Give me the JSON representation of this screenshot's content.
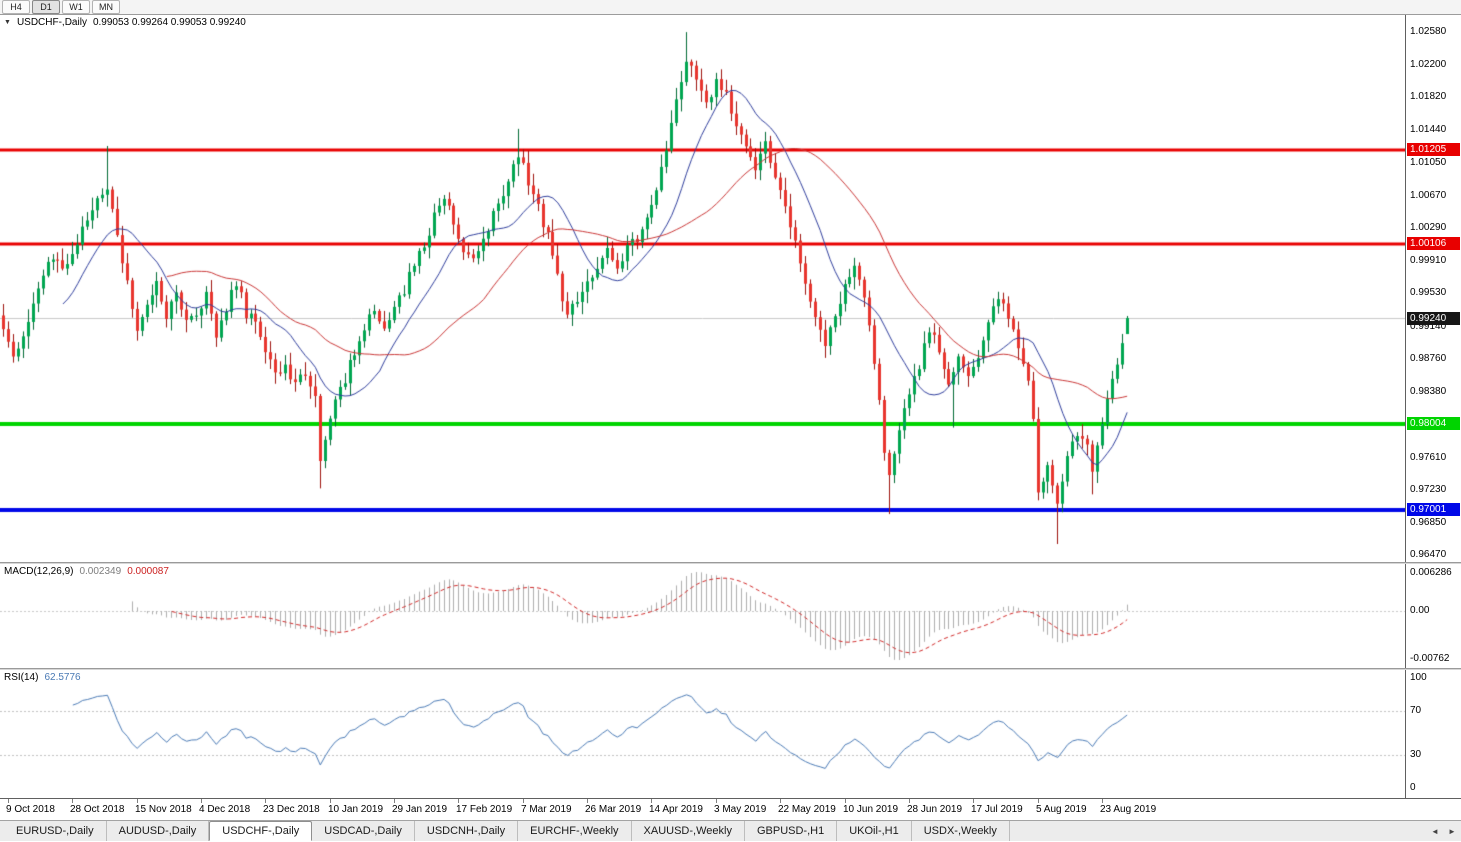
{
  "toolbar": {
    "timeframes": [
      "H4",
      "D1",
      "W1",
      "MN"
    ],
    "active_timeframe": "D1"
  },
  "chart": {
    "dropdown_icon": "▼",
    "symbol_period": "USDCHF-,Daily",
    "ohlc": "0.99053 0.99264 0.99053 0.99240",
    "price_axis_labels": [
      "1.02580",
      "1.02200",
      "1.01820",
      "1.01440",
      "1.01050",
      "1.00670",
      "1.00290",
      "0.99910",
      "0.99530",
      "0.99140",
      "0.98760",
      "0.98380",
      "0.97610",
      "0.97230",
      "0.96850",
      "0.96470"
    ],
    "hlines": [
      {
        "value": 1.01205,
        "label": "1.01205",
        "color": "#e80000",
        "thickness": 3
      },
      {
        "value": 1.00106,
        "label": "1.00106",
        "color": "#e80000",
        "thickness": 3
      },
      {
        "value": 0.98004,
        "label": "0.98004",
        "color": "#00d400",
        "thickness": 4
      },
      {
        "value": 0.97001,
        "label": "0.97001",
        "color": "#0008e8",
        "thickness": 4
      }
    ],
    "current_price": {
      "value": 0.9924,
      "label": "0.99240",
      "box_color": "#161616",
      "line_color": "#c9c9c9"
    },
    "colors": {
      "bull_fill": "#00a651",
      "bull_border": "#006b34",
      "bear_fill": "#e8352e",
      "bear_border": "#9e120c",
      "ma_fast": "#2e3d9c",
      "ma_slow": "#c93535"
    }
  },
  "macd_panel": {
    "name": "MACD(12,26,9)",
    "value_main": "0.002349",
    "value_signal": "0.000087",
    "axis_top": "0.006286",
    "axis_zero": "0.00",
    "axis_bottom": "-0.00762",
    "histogram_color": "#aeaeae",
    "signal_color": "#d02828"
  },
  "rsi_panel": {
    "name": "RSI(14)",
    "value": "62.5776",
    "axis_labels": [
      "100",
      "70",
      "30",
      "0"
    ],
    "levels": [
      70,
      30
    ],
    "line_color": "#4a7ab5"
  },
  "date_axis": {
    "labels": [
      "9 Oct 2018",
      "28 Oct 2018",
      "15 Nov 2018",
      "4 Dec 2018",
      "23 Dec 2018",
      "10 Jan 2019",
      "29 Jan 2019",
      "17 Feb 2019",
      "7 Mar 2019",
      "26 Mar 2019",
      "14 Apr 2019",
      "3 May 2019",
      "22 May 2019",
      "10 Jun 2019",
      "28 Jun 2019",
      "17 Jul 2019",
      "5 Aug 2019",
      "23 Aug 2019"
    ]
  },
  "tab_bar": {
    "tabs": [
      "EURUSD-,Daily",
      "AUDUSD-,Daily",
      "USDCHF-,Daily",
      "USDCAD-,Daily",
      "USDCNH-,Daily",
      "EURCHF-,Weekly",
      "XAUUSD-,Weekly",
      "GBPUSD-,H1",
      "UKOil-,H1",
      "USDX-,Weekly"
    ],
    "active_index": 2,
    "scroll_left_icon": "◄",
    "scroll_right_icon": "►"
  },
  "chart_data": {
    "type": "candlestick",
    "symbol": "USDCHF",
    "period": "Daily",
    "title": "USDCHF-,Daily",
    "last_ohlc": {
      "open": 0.99053,
      "high": 0.99264,
      "low": 0.99053,
      "close": 0.9924
    },
    "price_axis": {
      "max": 1.0278,
      "min": 0.9639
    },
    "num_candles": 228,
    "candle_spacing": 4.95,
    "labels_every": 13,
    "x_range": [
      "9 Oct 2018",
      "30 Aug 2019"
    ],
    "close_anchors": [
      [
        0,
        0.9915
      ],
      [
        2,
        0.9882
      ],
      [
        4,
        0.9905
      ],
      [
        7,
        0.9958
      ],
      [
        10,
        0.9996
      ],
      [
        13,
        0.9984
      ],
      [
        16,
        1.0028
      ],
      [
        19,
        1.0062
      ],
      [
        21,
        1.0078
      ],
      [
        23,
        1.0026
      ],
      [
        25,
        0.9962
      ],
      [
        27,
        0.9908
      ],
      [
        29,
        0.9942
      ],
      [
        31,
        0.9966
      ],
      [
        33,
        0.9928
      ],
      [
        35,
        0.9952
      ],
      [
        37,
        0.9918
      ],
      [
        39,
        0.9924
      ],
      [
        41,
        0.9952
      ],
      [
        43,
        0.9908
      ],
      [
        45,
        0.9938
      ],
      [
        47,
        0.9966
      ],
      [
        49,
        0.993
      ],
      [
        51,
        0.9918
      ],
      [
        53,
        0.9882
      ],
      [
        55,
        0.9858
      ],
      [
        57,
        0.9872
      ],
      [
        59,
        0.9846
      ],
      [
        61,
        0.9862
      ],
      [
        63,
        0.9838
      ],
      [
        64,
        0.9756
      ],
      [
        65,
        0.9788
      ],
      [
        67,
        0.9824
      ],
      [
        69,
        0.9852
      ],
      [
        71,
        0.9886
      ],
      [
        73,
        0.9914
      ],
      [
        75,
        0.9932
      ],
      [
        77,
        0.9906
      ],
      [
        79,
        0.9944
      ],
      [
        81,
        0.9958
      ],
      [
        83,
        0.9986
      ],
      [
        85,
        1.0012
      ],
      [
        87,
        1.0042
      ],
      [
        89,
        1.0064
      ],
      [
        91,
        1.0038
      ],
      [
        93,
        1.0002
      ],
      [
        95,
        0.9992
      ],
      [
        97,
        1.0014
      ],
      [
        99,
        1.0048
      ],
      [
        101,
        1.0072
      ],
      [
        103,
        1.0098
      ],
      [
        104,
        1.0118
      ],
      [
        106,
        1.0082
      ],
      [
        108,
        1.0052
      ],
      [
        110,
        1.0022
      ],
      [
        112,
        0.9972
      ],
      [
        114,
        0.9928
      ],
      [
        116,
        0.9944
      ],
      [
        118,
        0.9962
      ],
      [
        120,
        0.9986
      ],
      [
        122,
        1.0002
      ],
      [
        124,
        0.9988
      ],
      [
        126,
        1.0004
      ],
      [
        128,
        1.0018
      ],
      [
        130,
        1.0044
      ],
      [
        132,
        1.0078
      ],
      [
        134,
        1.0124
      ],
      [
        136,
        1.0178
      ],
      [
        138,
        1.0226
      ],
      [
        140,
        1.0198
      ],
      [
        142,
        1.0172
      ],
      [
        144,
        1.0204
      ],
      [
        146,
        1.0182
      ],
      [
        148,
        1.0152
      ],
      [
        150,
        1.0122
      ],
      [
        152,
        1.0094
      ],
      [
        154,
        1.0126
      ],
      [
        156,
        1.0086
      ],
      [
        158,
        1.0052
      ],
      [
        160,
        1.0008
      ],
      [
        162,
        0.9964
      ],
      [
        164,
        0.9924
      ],
      [
        166,
        0.9892
      ],
      [
        168,
        0.9926
      ],
      [
        170,
        0.9962
      ],
      [
        172,
        0.9988
      ],
      [
        174,
        0.9942
      ],
      [
        176,
        0.9876
      ],
      [
        178,
        0.9772
      ],
      [
        179,
        0.9742
      ],
      [
        181,
        0.9788
      ],
      [
        183,
        0.9836
      ],
      [
        185,
        0.9868
      ],
      [
        187,
        0.9912
      ],
      [
        189,
        0.9888
      ],
      [
        191,
        0.9842
      ],
      [
        193,
        0.9882
      ],
      [
        195,
        0.9852
      ],
      [
        197,
        0.9878
      ],
      [
        199,
        0.9918
      ],
      [
        201,
        0.9946
      ],
      [
        203,
        0.9928
      ],
      [
        205,
        0.9894
      ],
      [
        207,
        0.9856
      ],
      [
        208,
        0.9806
      ],
      [
        209,
        0.9726
      ],
      [
        211,
        0.9748
      ],
      [
        213,
        0.9706
      ],
      [
        215,
        0.9762
      ],
      [
        217,
        0.9792
      ],
      [
        219,
        0.9772
      ],
      [
        220,
        0.9742
      ],
      [
        222,
        0.9802
      ],
      [
        224,
        0.9846
      ],
      [
        226,
        0.9896
      ],
      [
        227,
        0.9924
      ]
    ],
    "spikes": [
      {
        "i": 21,
        "high": 1.0125
      },
      {
        "i": 104,
        "high": 1.0145
      },
      {
        "i": 138,
        "high": 1.0258
      },
      {
        "i": 64,
        "low": 0.9725
      },
      {
        "i": 179,
        "low": 0.9695
      },
      {
        "i": 192,
        "low": 0.9796
      },
      {
        "i": 213,
        "low": 0.966
      },
      {
        "i": 220,
        "low": 0.9718
      }
    ],
    "hline_levels": [
      1.01205,
      1.00106,
      0.98004,
      0.97001
    ],
    "moving_averages": [
      {
        "type": "sma",
        "period": 13,
        "color": "#2e3d9c"
      },
      {
        "type": "sma",
        "period": 34,
        "color": "#c93535"
      }
    ],
    "indicators": {
      "macd": {
        "fast": 12,
        "slow": 26,
        "signal": 9,
        "current_main": 0.002349,
        "current_signal": 8.7e-05
      },
      "rsi": {
        "period": 14,
        "current": 62.5776,
        "levels": [
          70,
          30
        ]
      }
    }
  }
}
